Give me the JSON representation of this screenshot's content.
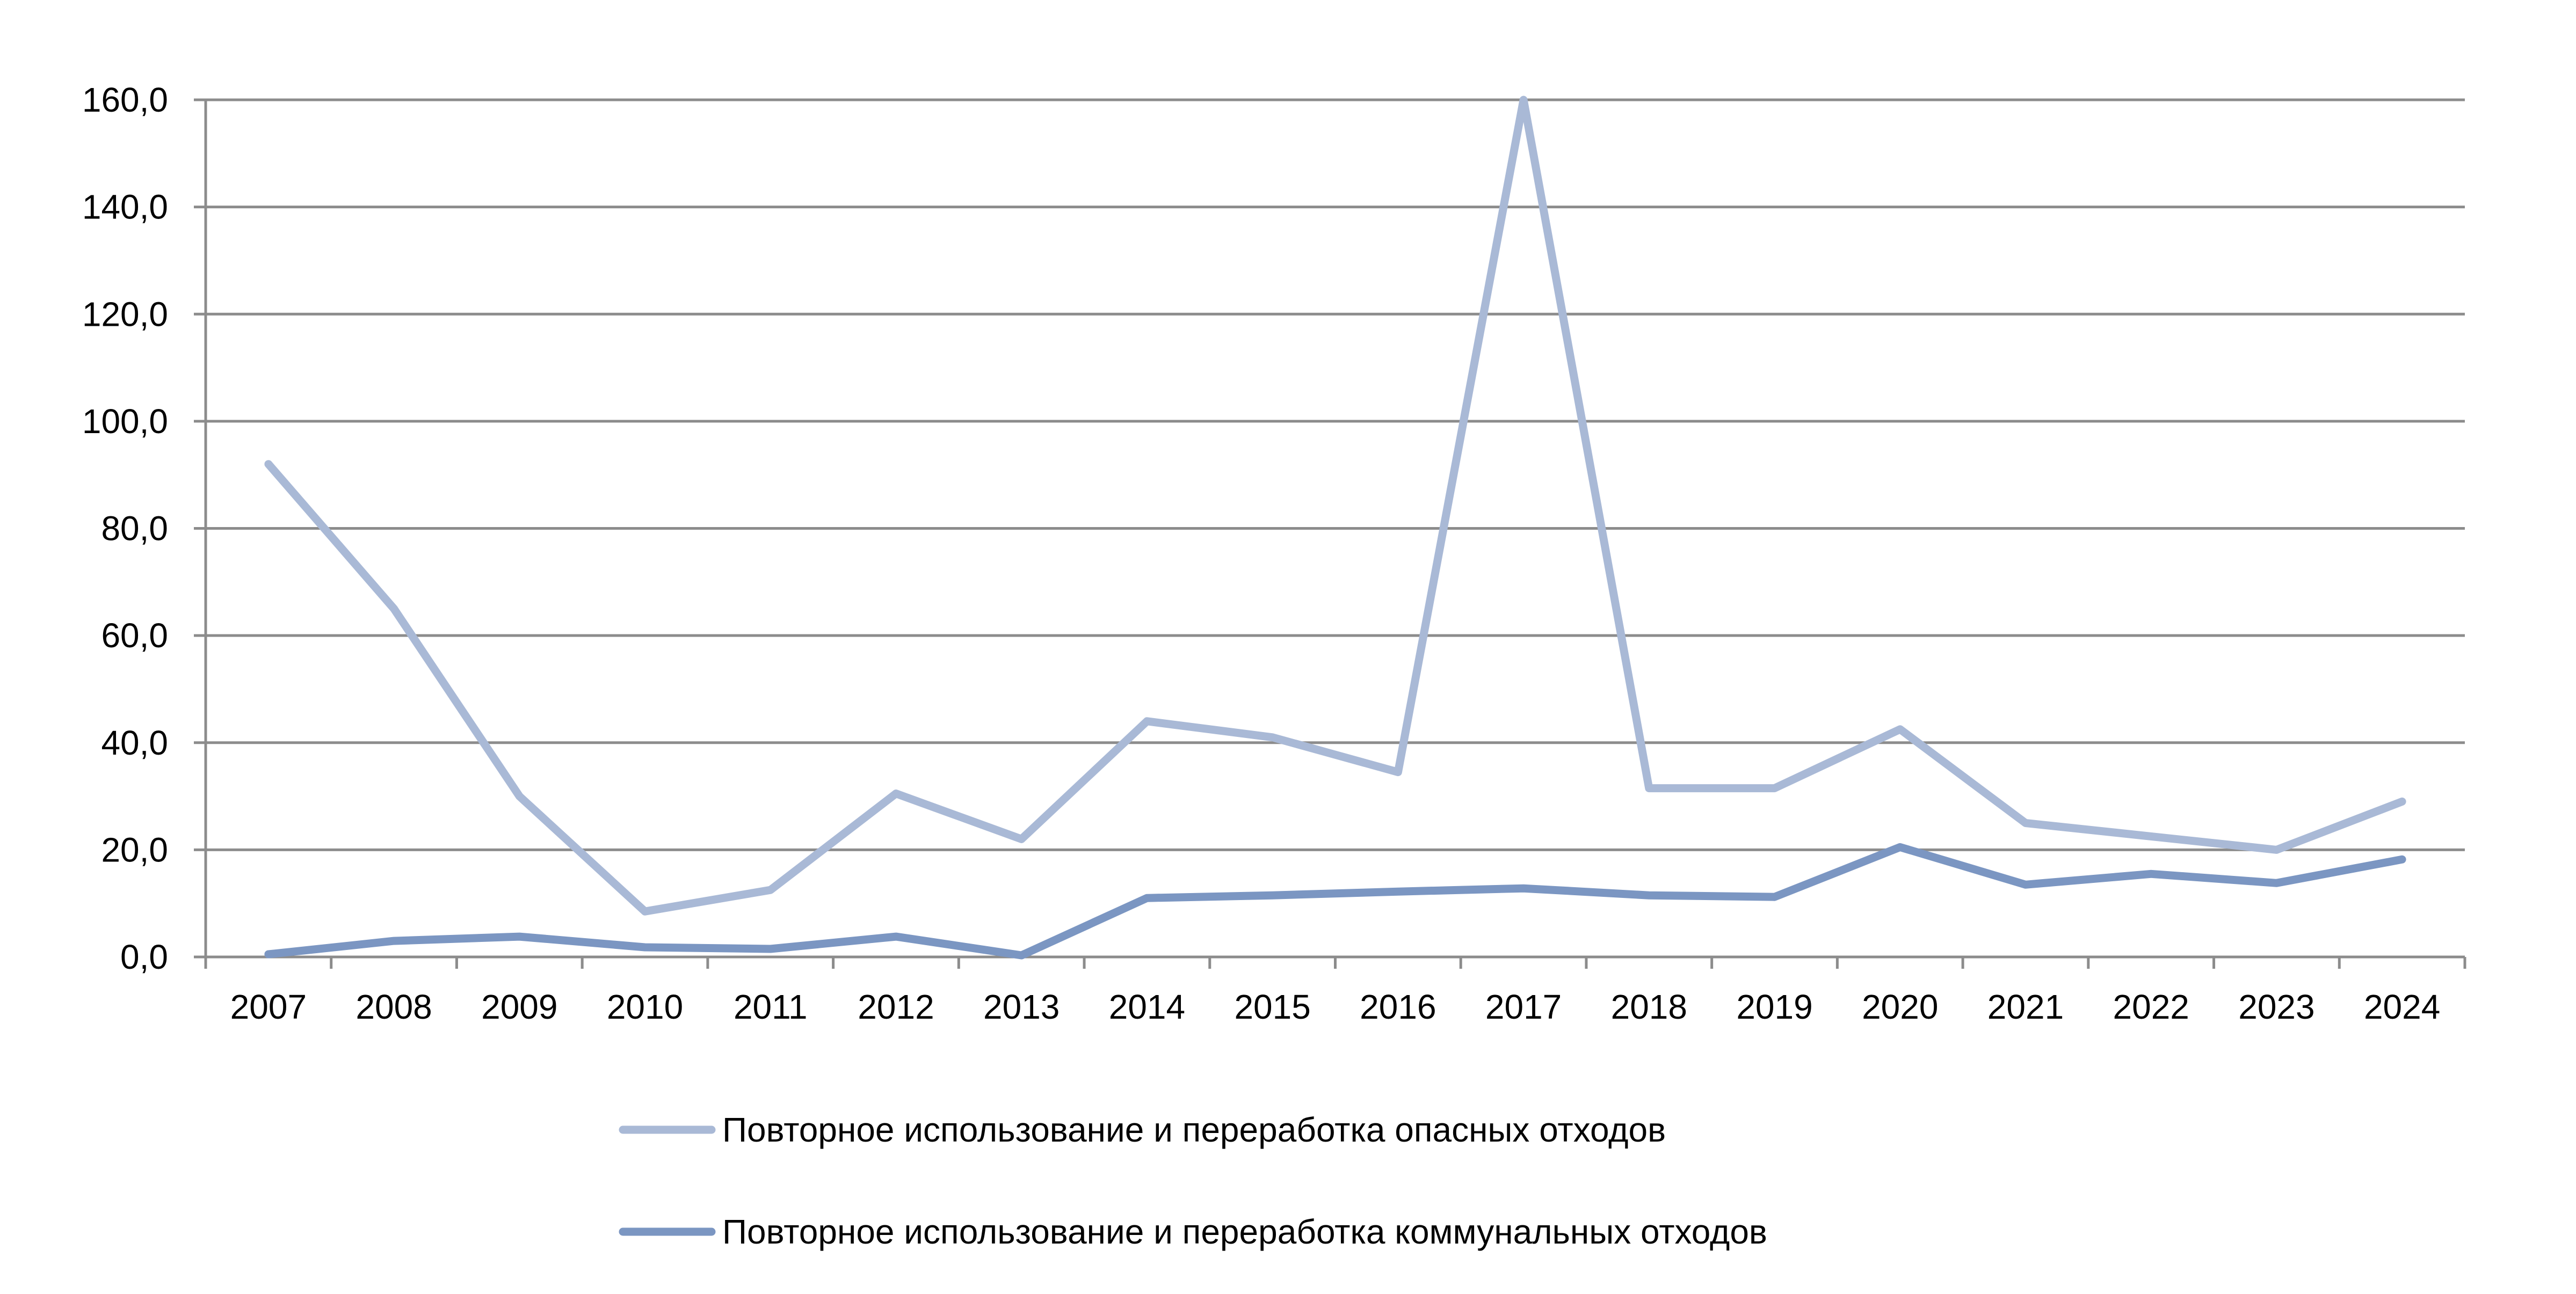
{
  "chart_data": {
    "type": "line",
    "title": "",
    "xlabel": "",
    "ylabel": "",
    "categories": [
      "2007",
      "2008",
      "2009",
      "2010",
      "2011",
      "2012",
      "2013",
      "2014",
      "2015",
      "2016",
      "2017",
      "2018",
      "2019",
      "2020",
      "2021",
      "2022",
      "2023",
      "2024"
    ],
    "ylim": [
      0,
      160
    ],
    "yticks": [
      "0,0",
      "20,0",
      "40,0",
      "60,0",
      "80,0",
      "100,0",
      "120,0",
      "140,0",
      "160,0"
    ],
    "grid": true,
    "legend_position": "bottom",
    "series": [
      {
        "name": "Повторное использование и переработка опасных отходов",
        "color": "#a9b9d6",
        "values": [
          92.0,
          65.0,
          30.0,
          8.5,
          12.5,
          30.5,
          22.0,
          44.0,
          41.0,
          34.5,
          160.0,
          31.5,
          31.5,
          42.5,
          25.0,
          22.5,
          20.0,
          29.0
        ]
      },
      {
        "name": "Повторное использование и переработка коммунальных отходов",
        "color": "#7b96c2",
        "values": [
          0.5,
          3.0,
          3.8,
          1.8,
          1.5,
          3.8,
          0.3,
          11.0,
          11.5,
          12.2,
          12.8,
          11.5,
          11.2,
          20.5,
          13.5,
          15.5,
          13.8,
          18.2
        ]
      }
    ]
  }
}
